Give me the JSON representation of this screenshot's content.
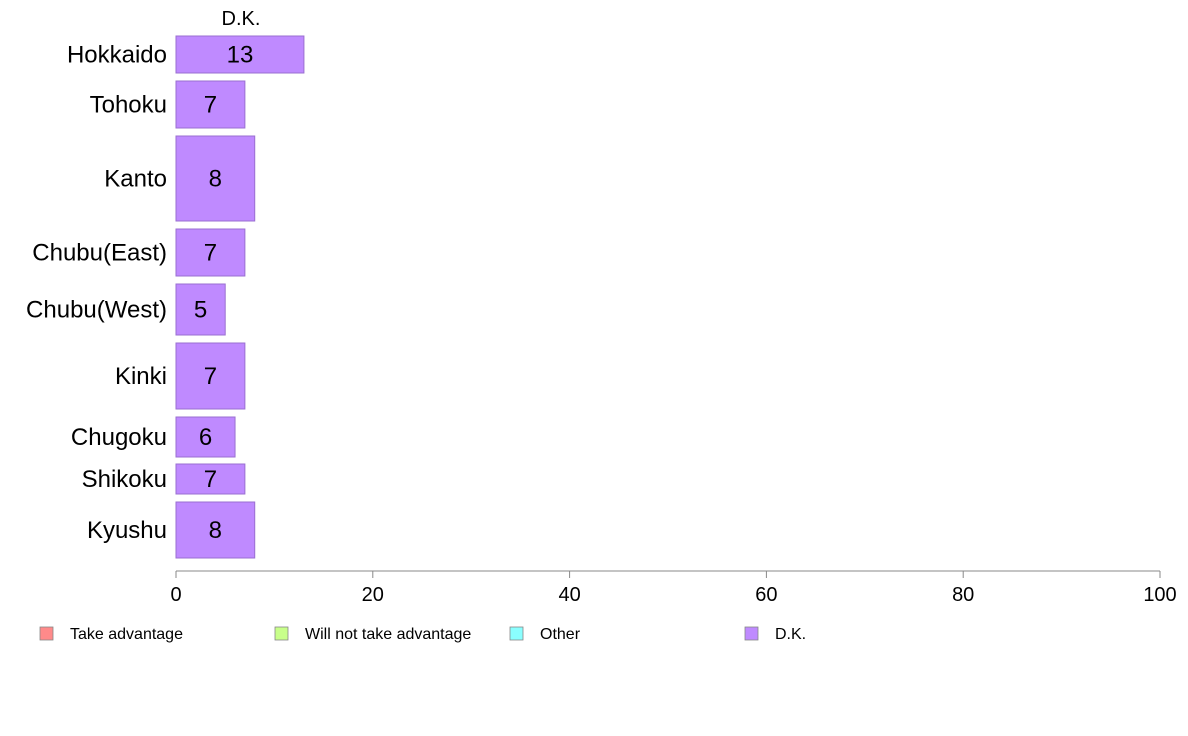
{
  "chart_data": {
    "type": "bar",
    "orientation": "horizontal",
    "stacked": true,
    "categories": [
      "Hokkaido",
      "Tohoku",
      "Kanto",
      "Chubu(East)",
      "Chubu(West)",
      "Kinki",
      "Chugoku",
      "Shikoku",
      "Kyushu"
    ],
    "series": [
      {
        "name": "Take advantage",
        "color": "#ff8a8a",
        "values": [
          0,
          0,
          0,
          0,
          0,
          0,
          0,
          0,
          0
        ]
      },
      {
        "name": "Will not take advantage",
        "color": "#c8ff8a",
        "values": [
          0,
          0,
          0,
          0,
          0,
          0,
          0,
          0,
          0
        ]
      },
      {
        "name": "Other",
        "color": "#8affff",
        "values": [
          0,
          0,
          0,
          0,
          0,
          0,
          0,
          0,
          0
        ]
      },
      {
        "name": "D.K.",
        "color": "#bf8aff",
        "values": [
          13,
          7,
          8,
          7,
          5,
          7,
          6,
          7,
          8
        ]
      }
    ],
    "column_header": "D.K.",
    "xlim": [
      0,
      100
    ],
    "xticks": [
      "0",
      "20",
      "40",
      "60",
      "80",
      "100"
    ],
    "grid": false,
    "legend_position": "bottom"
  }
}
